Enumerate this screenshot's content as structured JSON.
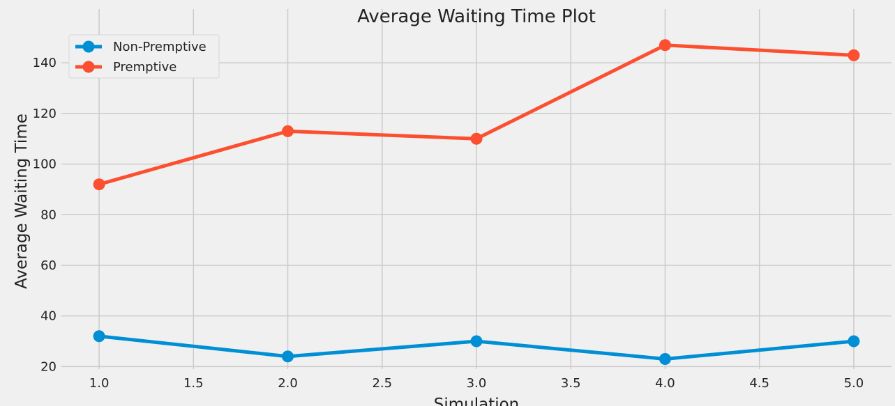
{
  "chart_data": {
    "type": "line",
    "title": "Average Waiting Time Plot",
    "xlabel": "Simulation",
    "ylabel": "Average Waiting Time",
    "x": [
      1,
      2,
      3,
      4,
      5
    ],
    "xlim": [
      0.8,
      5.2
    ],
    "ylim": [
      19,
      153
    ],
    "xticks": [
      "1.0",
      "1.5",
      "2.0",
      "2.5",
      "3.0",
      "3.5",
      "4.0",
      "4.5",
      "5.0"
    ],
    "yticks": [
      "20",
      "40",
      "60",
      "80",
      "100",
      "120",
      "140"
    ],
    "grid": true,
    "legend_position": "top-left",
    "series": [
      {
        "name": "Non-Premptive",
        "color": "#008fd5",
        "values": [
          32,
          24,
          30,
          23,
          30
        ]
      },
      {
        "name": "Premptive",
        "color": "#fc4f30",
        "values": [
          92,
          113,
          110,
          147,
          143
        ]
      }
    ]
  }
}
